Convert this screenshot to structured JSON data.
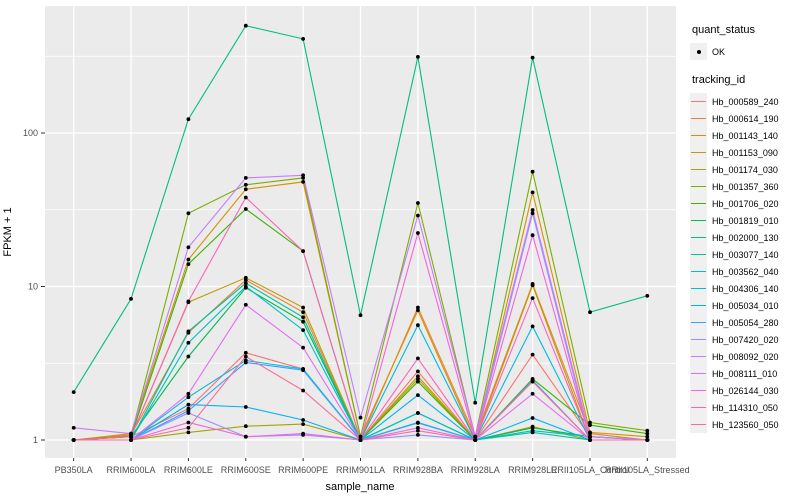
{
  "figure": {
    "background": "#ffffff",
    "panel_background": "#ebebeb",
    "gridline_color": "#ffffff",
    "tick_color": "#333333",
    "axis_text_color": "#4d4d4d"
  },
  "legend": {
    "quant_title": "quant_status",
    "ok_label": "OK",
    "ok_marker": "point",
    "tracking_title": "tracking_id",
    "position": "right"
  },
  "chart_data": {
    "type": "line",
    "title": "",
    "xlabel": "sample_name",
    "ylabel": "FPKM + 1",
    "y_scale": "log10",
    "y_ticks": [
      1,
      10,
      100
    ],
    "ylim": [
      0.93,
      560
    ],
    "grid": true,
    "legend_position": "right",
    "marker": "black-point",
    "categories": [
      "PB350LA",
      "RRIM600LA",
      "RRIM600LE",
      "RRIM600SE",
      "RRIM600PE",
      "RRIM901LA",
      "RRIM928BA",
      "RRIM928LA",
      "RRIM928LE",
      "RRII105LA_Control",
      "RRII105LA_Stressed"
    ],
    "series": [
      {
        "name": "Hb_000589_240",
        "color": "#F8766D",
        "values": [
          1.0,
          1.05,
          1.6,
          3.7,
          2.9,
          1.0,
          2.8,
          1.0,
          3.6,
          1.05,
          1.0
        ]
      },
      {
        "name": "Hb_000614_190",
        "color": "#EA8331",
        "values": [
          1.0,
          1.08,
          5.0,
          11.0,
          6.8,
          1.0,
          7.3,
          1.05,
          10.4,
          1.1,
          1.0
        ]
      },
      {
        "name": "Hb_001143_140",
        "color": "#D89000",
        "values": [
          1.0,
          1.1,
          15,
          43,
          48,
          1.05,
          7.0,
          1.0,
          41,
          1.12,
          1.05
        ]
      },
      {
        "name": "Hb_001153_090",
        "color": "#C09B00",
        "values": [
          1.0,
          1.05,
          7.9,
          11.4,
          7.3,
          1.0,
          2.6,
          1.0,
          10.2,
          1.0,
          1.0
        ]
      },
      {
        "name": "Hb_001174_030",
        "color": "#A3A500",
        "values": [
          1.0,
          1.0,
          1.12,
          1.23,
          1.27,
          1.0,
          2.5,
          1.0,
          1.22,
          1.0,
          1.0
        ]
      },
      {
        "name": "Hb_001357_360",
        "color": "#7CAE00",
        "values": [
          1.0,
          1.06,
          30,
          46,
          51,
          1.05,
          35,
          1.05,
          56,
          1.3,
          1.15
        ]
      },
      {
        "name": "Hb_001706_020",
        "color": "#39B600",
        "values": [
          1.0,
          1.05,
          14,
          32,
          17,
          1.0,
          2.4,
          1.0,
          2.5,
          1.25,
          1.1
        ]
      },
      {
        "name": "Hb_001819_010",
        "color": "#00BB4E",
        "values": [
          1.0,
          1.05,
          3.5,
          9.8,
          5.9,
          1.0,
          1.5,
          1.0,
          1.2,
          1.05,
          1.0
        ]
      },
      {
        "name": "Hb_002000_130",
        "color": "#00BF7D",
        "values": [
          2.05,
          8.3,
          123,
          500,
          410,
          6.5,
          313,
          1.75,
          310,
          6.8,
          8.7
        ]
      },
      {
        "name": "Hb_003077_140",
        "color": "#00C1A3",
        "values": [
          1.0,
          1.0,
          5.1,
          10.5,
          6.3,
          1.0,
          1.3,
          1.0,
          1.12,
          1.0,
          1.0
        ]
      },
      {
        "name": "Hb_003562_040",
        "color": "#00BFC4",
        "values": [
          1.0,
          1.0,
          4.3,
          10.0,
          5.2,
          1.0,
          1.5,
          1.0,
          1.15,
          1.05,
          1.0
        ]
      },
      {
        "name": "Hb_004306_140",
        "color": "#00BAE0",
        "values": [
          1.0,
          1.0,
          1.9,
          3.3,
          2.9,
          1.0,
          5.6,
          1.0,
          5.5,
          1.0,
          1.0
        ]
      },
      {
        "name": "Hb_005034_010",
        "color": "#00B0F6",
        "values": [
          1.0,
          1.0,
          1.7,
          1.64,
          1.35,
          1.0,
          1.96,
          1.0,
          1.39,
          1.0,
          1.0
        ]
      },
      {
        "name": "Hb_005054_280",
        "color": "#35A2FF",
        "values": [
          1.0,
          1.0,
          1.55,
          3.2,
          2.85,
          1.0,
          1.29,
          1.0,
          2.45,
          1.0,
          1.0
        ]
      },
      {
        "name": "Hb_007420_020",
        "color": "#9590FF",
        "values": [
          1.0,
          1.0,
          1.5,
          1.05,
          1.08,
          1.0,
          1.08,
          1.0,
          30,
          1.0,
          1.0
        ]
      },
      {
        "name": "Hb_008092_020",
        "color": "#C77CFF",
        "values": [
          1.2,
          1.1,
          18,
          51,
          53,
          1.4,
          29,
          1.05,
          31.5,
          1.05,
          1.0
        ]
      },
      {
        "name": "Hb_008111_010",
        "color": "#E76BF3",
        "values": [
          1.0,
          1.0,
          2.0,
          7.6,
          4.0,
          1.0,
          1.2,
          1.0,
          2.0,
          1.0,
          1.0
        ]
      },
      {
        "name": "Hb_026144_030",
        "color": "#FA62DB",
        "values": [
          1.0,
          1.0,
          1.3,
          1.05,
          1.1,
          1.0,
          22.3,
          1.0,
          21.6,
          1.0,
          1.0
        ]
      },
      {
        "name": "Hb_114310_050",
        "color": "#FF62BC",
        "values": [
          1.0,
          1.05,
          8.0,
          38,
          17,
          1.0,
          3.4,
          1.0,
          8.4,
          1.0,
          1.0
        ]
      },
      {
        "name": "Hb_123560_050",
        "color": "#FF6A98",
        "values": [
          1.0,
          1.0,
          1.2,
          3.5,
          2.1,
          1.0,
          1.15,
          1.0,
          2.4,
          1.0,
          1.0
        ]
      }
    ]
  }
}
